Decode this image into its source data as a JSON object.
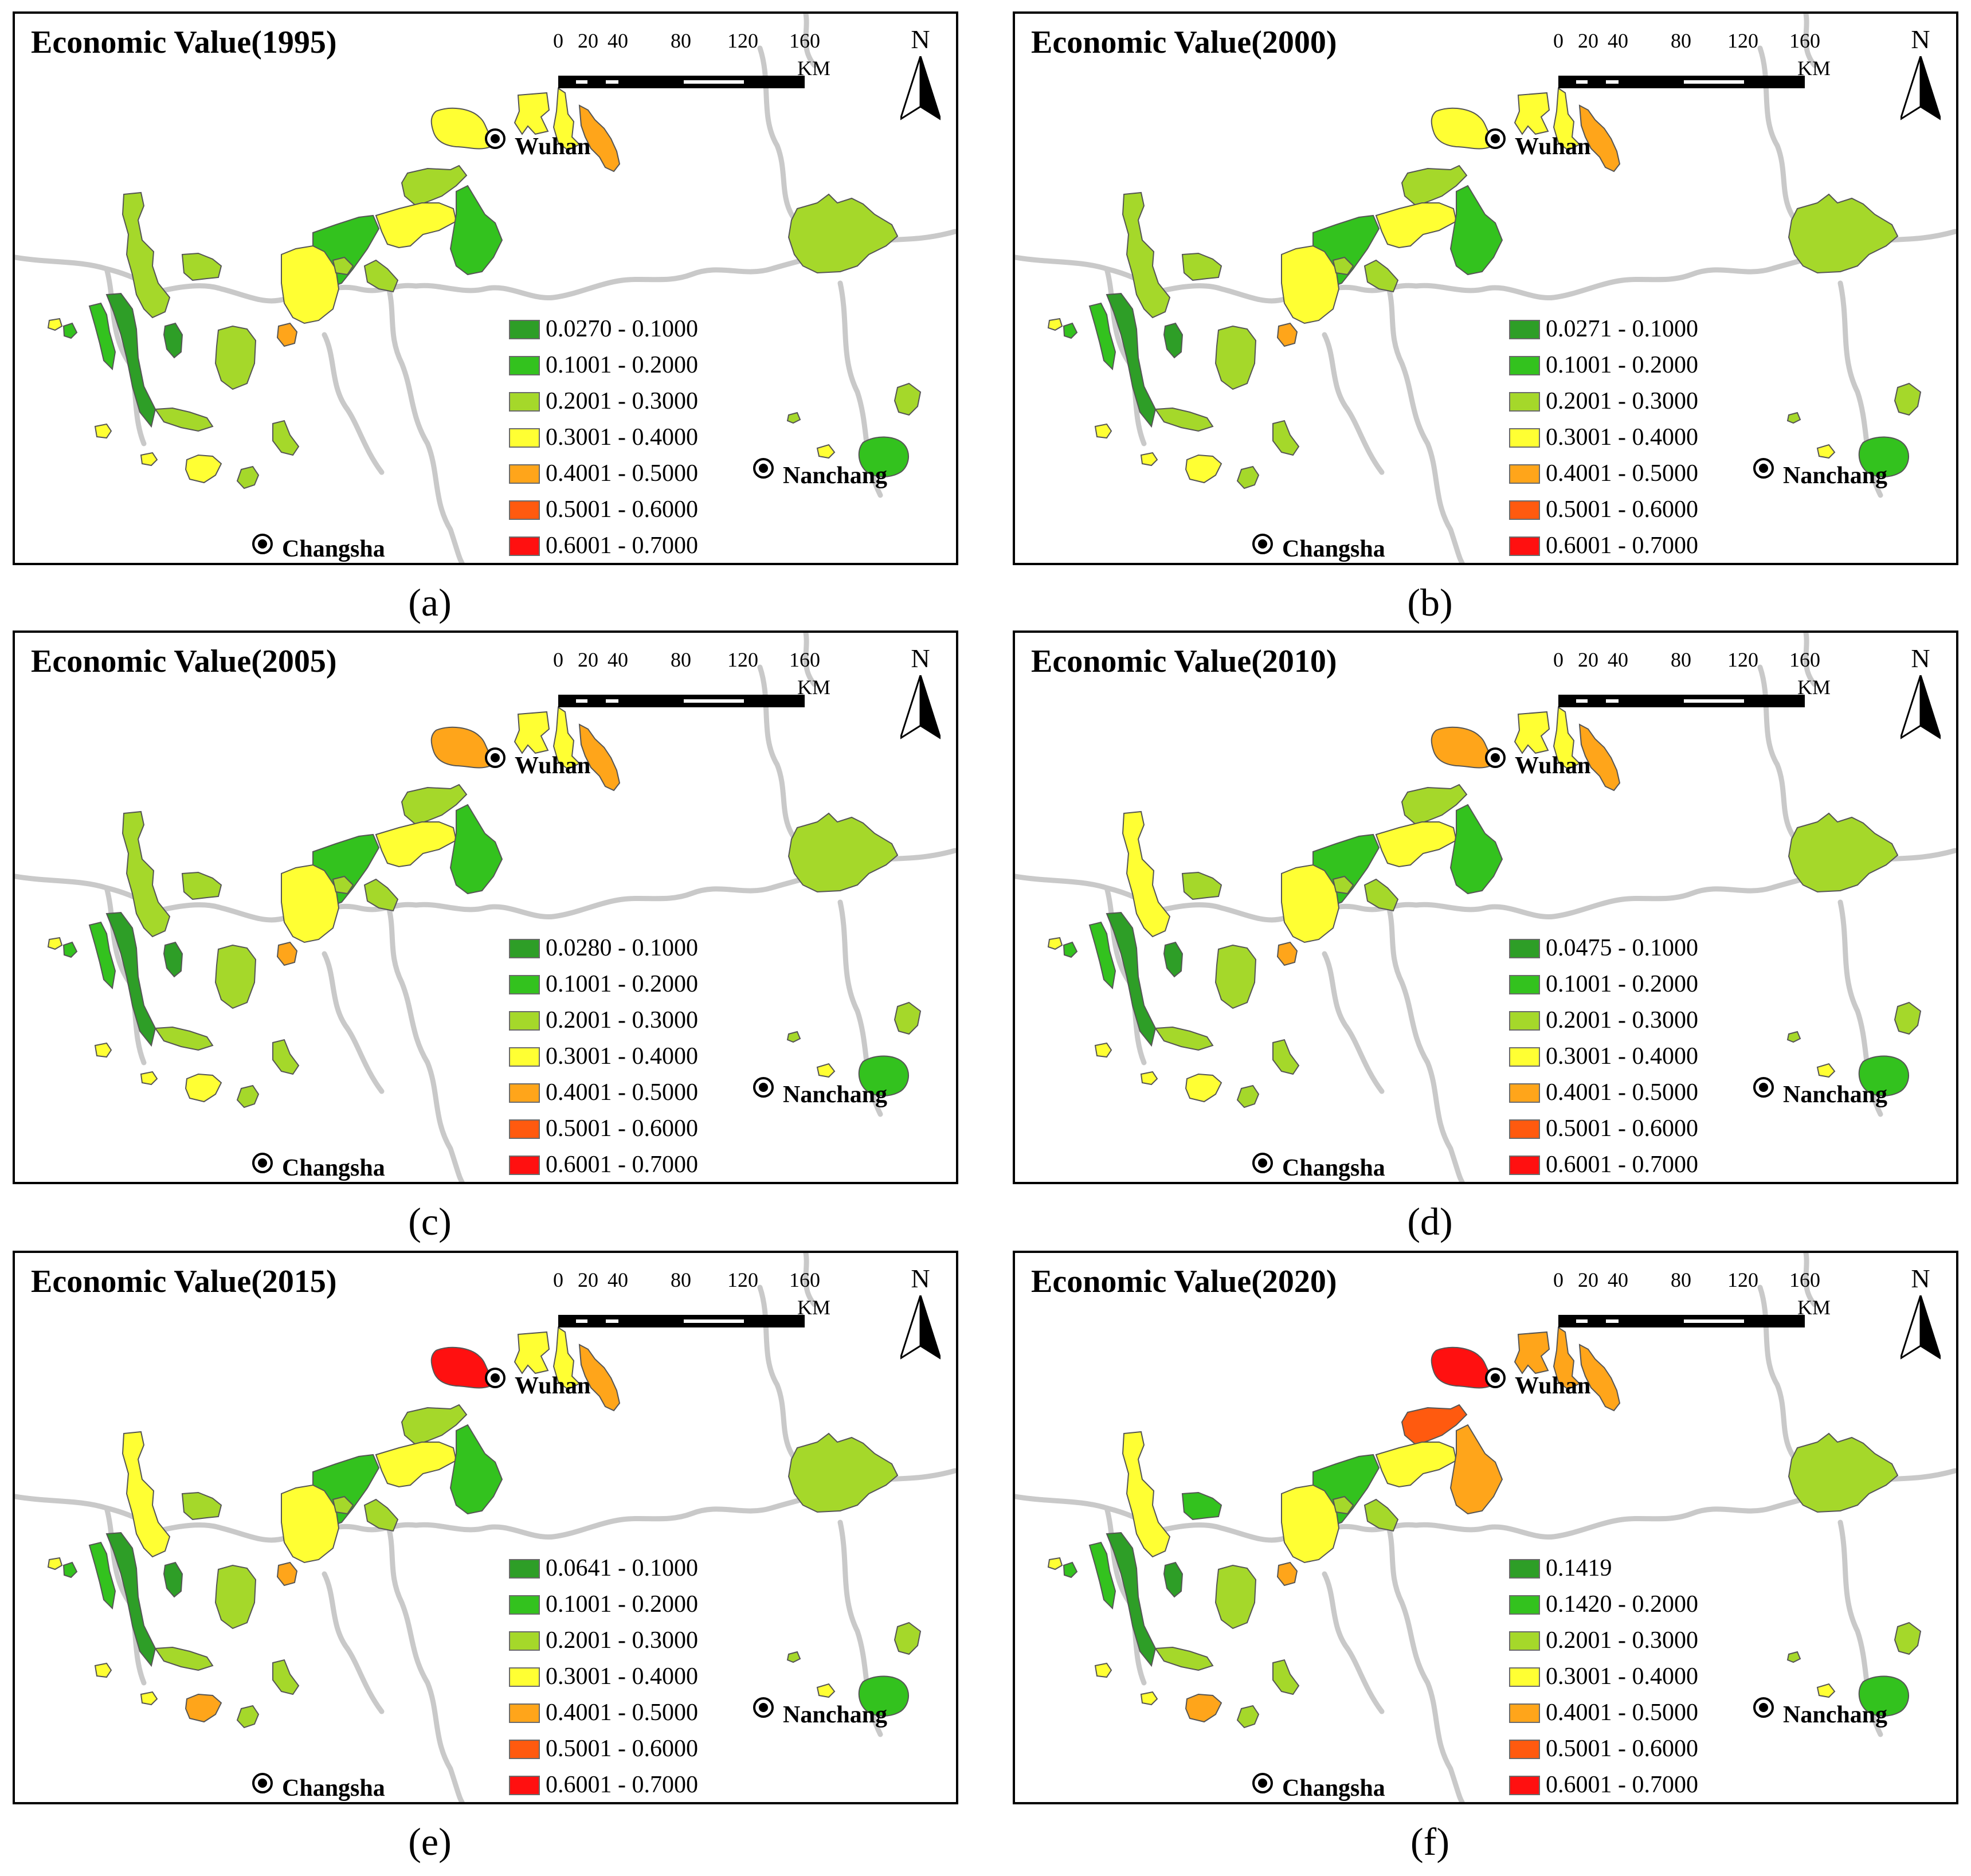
{
  "figure": {
    "title_prefix": "Economic Value",
    "scale_labels": [
      "0",
      "20",
      "40",
      "80",
      "120",
      "160"
    ],
    "scale_unit": "KM",
    "north_label": "N",
    "cities": [
      "Wuhan",
      "Nanchang",
      "Changsha"
    ],
    "colors": {
      "dark_green": "#2e9e27",
      "green": "#33c21e",
      "light_green": "#a5d82a",
      "yellow": "#ffff33",
      "orange": "#ffa51a",
      "dark_orange": "#ff5a0f",
      "red": "#ff1010",
      "boundary": "#c9c9c9",
      "outline": "#555555"
    },
    "panels": [
      {
        "caption": "(a)",
        "title": "Economic Value(1995)",
        "legend": [
          "0.0270 - 0.1000",
          "0.1001 - 0.2000",
          "0.2001 - 0.3000",
          "0.3001 - 0.4000",
          "0.4001 - 0.5000",
          "0.5001 - 0.6000",
          "0.6001 - 0.7000"
        ],
        "value_class": {
          "nw1": "yellow",
          "n1": "yellow",
          "n2": "yellow",
          "n3": "orange",
          "l1": "light_green",
          "l2": "light_green",
          "l3": "dark_green",
          "l4": "green",
          "l5": "dark_green",
          "c1": "light_green",
          "c2": "green",
          "c3": "yellow",
          "c4": "green",
          "c5": "light_green",
          "c6": "yellow",
          "c7": "orange",
          "c8": "light_green",
          "e1": "light_green",
          "e2": "green",
          "s1": "light_green",
          "s2": "light_green",
          "s3": "yellow",
          "s4": "light_green",
          "s5": "yellow",
          "s6": "yellow",
          "s7": "yellow",
          "r1": "light_green",
          "r2": "light_green",
          "r3": "yellow",
          "r4": "green",
          "r5": "light_green"
        }
      },
      {
        "caption": "(b)",
        "title": "Economic Value(2000)",
        "legend": [
          "0.0271 - 0.1000",
          "0.1001 - 0.2000",
          "0.2001 - 0.3000",
          "0.3001 - 0.4000",
          "0.4001 - 0.5000",
          "0.5001 - 0.6000",
          "0.6001 - 0.7000"
        ],
        "value_class": {
          "nw1": "yellow",
          "n1": "yellow",
          "n2": "yellow",
          "n3": "orange",
          "l1": "light_green",
          "l2": "light_green",
          "l3": "dark_green",
          "l4": "green",
          "l5": "dark_green",
          "c1": "light_green",
          "c2": "green",
          "c3": "yellow",
          "c4": "green",
          "c5": "light_green",
          "c6": "yellow",
          "c7": "orange",
          "c8": "light_green",
          "e1": "light_green",
          "e2": "green",
          "s1": "light_green",
          "s2": "light_green",
          "s3": "yellow",
          "s4": "light_green",
          "s5": "yellow",
          "s6": "yellow",
          "s7": "yellow",
          "r1": "light_green",
          "r2": "light_green",
          "r3": "yellow",
          "r4": "green",
          "r5": "light_green"
        }
      },
      {
        "caption": "(c)",
        "title": "Economic Value(2005)",
        "legend": [
          "0.0280 - 0.1000",
          "0.1001 - 0.2000",
          "0.2001 - 0.3000",
          "0.3001 - 0.4000",
          "0.4001 - 0.5000",
          "0.5001 - 0.6000",
          "0.6001 - 0.7000"
        ],
        "value_class": {
          "nw1": "orange",
          "n1": "yellow",
          "n2": "yellow",
          "n3": "orange",
          "l1": "light_green",
          "l2": "light_green",
          "l3": "dark_green",
          "l4": "green",
          "l5": "dark_green",
          "c1": "light_green",
          "c2": "green",
          "c3": "yellow",
          "c4": "green",
          "c5": "light_green",
          "c6": "yellow",
          "c7": "orange",
          "c8": "light_green",
          "e1": "light_green",
          "e2": "green",
          "s1": "light_green",
          "s2": "light_green",
          "s3": "yellow",
          "s4": "light_green",
          "s5": "yellow",
          "s6": "yellow",
          "s7": "yellow",
          "r1": "light_green",
          "r2": "light_green",
          "r3": "yellow",
          "r4": "green",
          "r5": "light_green"
        }
      },
      {
        "caption": "(d)",
        "title": "Economic Value(2010)",
        "legend": [
          "0.0475 - 0.1000",
          "0.1001 - 0.2000",
          "0.2001 - 0.3000",
          "0.3001 - 0.4000",
          "0.4001 - 0.5000",
          "0.5001 - 0.6000",
          "0.6001 - 0.7000"
        ],
        "value_class": {
          "nw1": "orange",
          "n1": "yellow",
          "n2": "yellow",
          "n3": "orange",
          "l1": "yellow",
          "l2": "light_green",
          "l3": "dark_green",
          "l4": "green",
          "l5": "dark_green",
          "c1": "light_green",
          "c2": "green",
          "c3": "yellow",
          "c4": "green",
          "c5": "light_green",
          "c6": "yellow",
          "c7": "orange",
          "c8": "light_green",
          "e1": "light_green",
          "e2": "green",
          "s1": "light_green",
          "s2": "light_green",
          "s3": "yellow",
          "s4": "light_green",
          "s5": "yellow",
          "s6": "yellow",
          "s7": "yellow",
          "r1": "light_green",
          "r2": "light_green",
          "r3": "yellow",
          "r4": "green",
          "r5": "light_green"
        }
      },
      {
        "caption": "(e)",
        "title": "Economic Value(2015)",
        "legend": [
          "0.0641 - 0.1000",
          "0.1001 - 0.2000",
          "0.2001 - 0.3000",
          "0.3001 - 0.4000",
          "0.4001 - 0.5000",
          "0.5001 - 0.6000",
          "0.6001 - 0.7000"
        ],
        "value_class": {
          "nw1": "red",
          "n1": "yellow",
          "n2": "yellow",
          "n3": "orange",
          "l1": "yellow",
          "l2": "light_green",
          "l3": "dark_green",
          "l4": "green",
          "l5": "dark_green",
          "c1": "light_green",
          "c2": "green",
          "c3": "yellow",
          "c4": "green",
          "c5": "light_green",
          "c6": "yellow",
          "c7": "orange",
          "c8": "light_green",
          "e1": "light_green",
          "e2": "green",
          "s1": "light_green",
          "s2": "light_green",
          "s3": "orange",
          "s4": "light_green",
          "s5": "yellow",
          "s6": "yellow",
          "s7": "yellow",
          "r1": "light_green",
          "r2": "light_green",
          "r3": "yellow",
          "r4": "green",
          "r5": "light_green"
        }
      },
      {
        "caption": "(f)",
        "title": "Economic Value(2020)",
        "legend": [
          "0.1419",
          "0.1420 - 0.2000",
          "0.2001 - 0.3000",
          "0.3001 - 0.4000",
          "0.4001 - 0.5000",
          "0.5001 - 0.6000",
          "0.6001 - 0.7000"
        ],
        "value_class": {
          "nw1": "red",
          "n1": "orange",
          "n2": "orange",
          "n3": "orange",
          "l1": "yellow",
          "l2": "green",
          "l3": "dark_green",
          "l4": "green",
          "l5": "dark_green",
          "c1": "dark_orange",
          "c2": "green",
          "c3": "yellow",
          "c4": "orange",
          "c5": "light_green",
          "c6": "yellow",
          "c7": "orange",
          "c8": "light_green",
          "e1": "light_green",
          "e2": "green",
          "s1": "light_green",
          "s2": "light_green",
          "s3": "orange",
          "s4": "light_green",
          "s5": "yellow",
          "s6": "yellow",
          "s7": "yellow",
          "r1": "light_green",
          "r2": "light_green",
          "r3": "yellow",
          "r4": "green",
          "r5": "light_green"
        }
      }
    ]
  }
}
